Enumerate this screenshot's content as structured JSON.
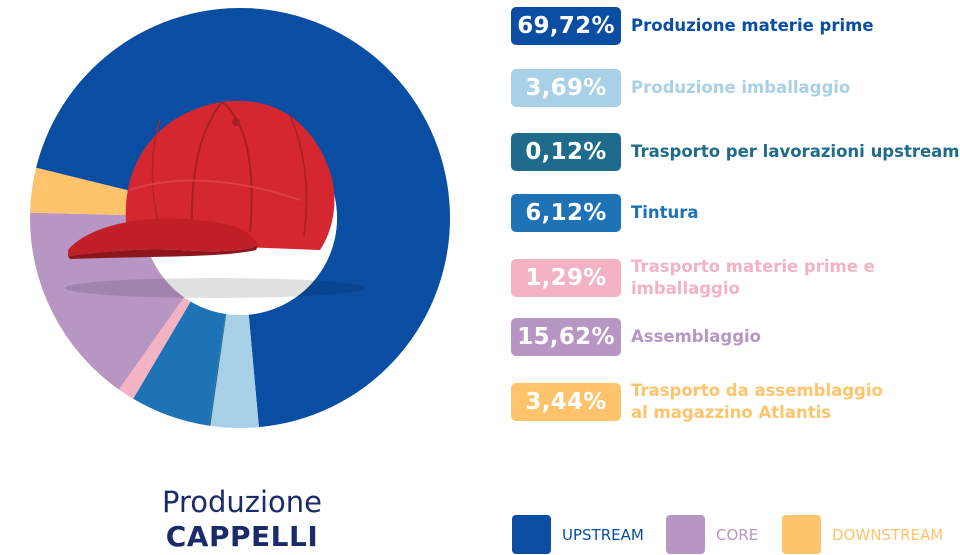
{
  "chart_data": {
    "type": "pie",
    "slices": [
      {
        "label": "Produzione materie prime",
        "value": 69.72,
        "display": "69,72%",
        "color": "#0a4ea4",
        "text_color": "#0a4ea4"
      },
      {
        "label": "Produzione imballaggio",
        "value": 3.69,
        "display": "3,69%",
        "color": "#a8d0e6",
        "text_color": "#a8d0e6"
      },
      {
        "label": "Trasporto per lavorazioni upstream",
        "value": 0.12,
        "display": "0,12%",
        "color": "#1f6b8c",
        "text_color": "#1f6b8c"
      },
      {
        "label": "Tintura",
        "value": 6.12,
        "display": "6,12%",
        "color": "#1e72b6",
        "text_color": "#1e72b6"
      },
      {
        "label": "Trasporto materie prime e imballaggio",
        "value": 1.29,
        "display": "1,29%",
        "color": "#f3b3c3",
        "text_color": "#f3b3c3"
      },
      {
        "label": "Assemblaggio",
        "value": 15.62,
        "display": "15,62%",
        "color": "#b896c3",
        "text_color": "#b896c3"
      },
      {
        "label": "Trasporto da assemblaggio\nal magazzino Atlantis",
        "value": 3.44,
        "display": "3,44%",
        "color": "#ffc46b",
        "text_color": "#ffc46b"
      }
    ],
    "title_line1": "Produzione",
    "title_line2": "CAPPELLI",
    "groups": [
      {
        "name": "UPSTREAM",
        "color": "#0a4ea4"
      },
      {
        "name": "CORE",
        "color": "#b896c3"
      },
      {
        "name": "DOWNSTREAM",
        "color": "#ffc46b"
      }
    ]
  },
  "center_image": "red-baseball-cap"
}
